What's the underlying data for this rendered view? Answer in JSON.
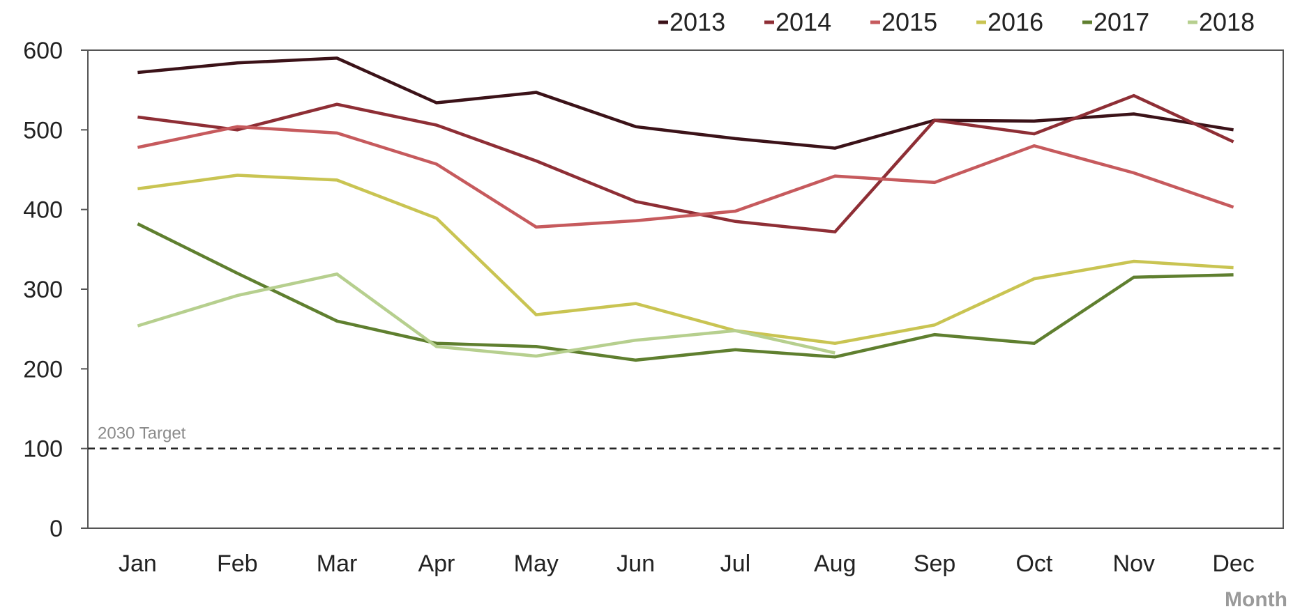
{
  "chart_data": {
    "type": "line",
    "categories": [
      "Jan",
      "Feb",
      "Mar",
      "Apr",
      "May",
      "Jun",
      "Jul",
      "Aug",
      "Sep",
      "Oct",
      "Nov",
      "Dec"
    ],
    "ylim": [
      0,
      600
    ],
    "yticks": [
      0,
      100,
      200,
      300,
      400,
      500,
      600
    ],
    "xlabel": "Month",
    "ylabel": "",
    "legend_position": "top-right",
    "grid": false,
    "series": [
      {
        "name": "2013",
        "color": "#3b1218",
        "values": [
          572,
          584,
          590,
          534,
          547,
          504,
          489,
          477,
          512,
          511,
          520,
          500
        ]
      },
      {
        "name": "2014",
        "color": "#8e2e35",
        "values": [
          516,
          500,
          532,
          506,
          461,
          410,
          385,
          372,
          512,
          495,
          543,
          485
        ]
      },
      {
        "name": "2015",
        "color": "#c65a5d",
        "values": [
          478,
          504,
          496,
          457,
          378,
          386,
          398,
          442,
          434,
          480,
          446,
          403
        ]
      },
      {
        "name": "2016",
        "color": "#c9c452",
        "values": [
          426,
          443,
          437,
          389,
          268,
          282,
          248,
          232,
          255,
          313,
          335,
          327
        ]
      },
      {
        "name": "2017",
        "color": "#5f7f2f",
        "values": [
          382,
          320,
          260,
          232,
          228,
          211,
          224,
          215,
          243,
          232,
          315,
          318
        ]
      },
      {
        "name": "2018",
        "color": "#b6cf8e",
        "values": [
          254,
          292,
          319,
          228,
          216,
          236,
          248,
          220,
          null,
          null,
          null,
          null
        ]
      }
    ],
    "reference_line": {
      "value": 100,
      "label": "2030 Target",
      "color": "#222222"
    }
  }
}
